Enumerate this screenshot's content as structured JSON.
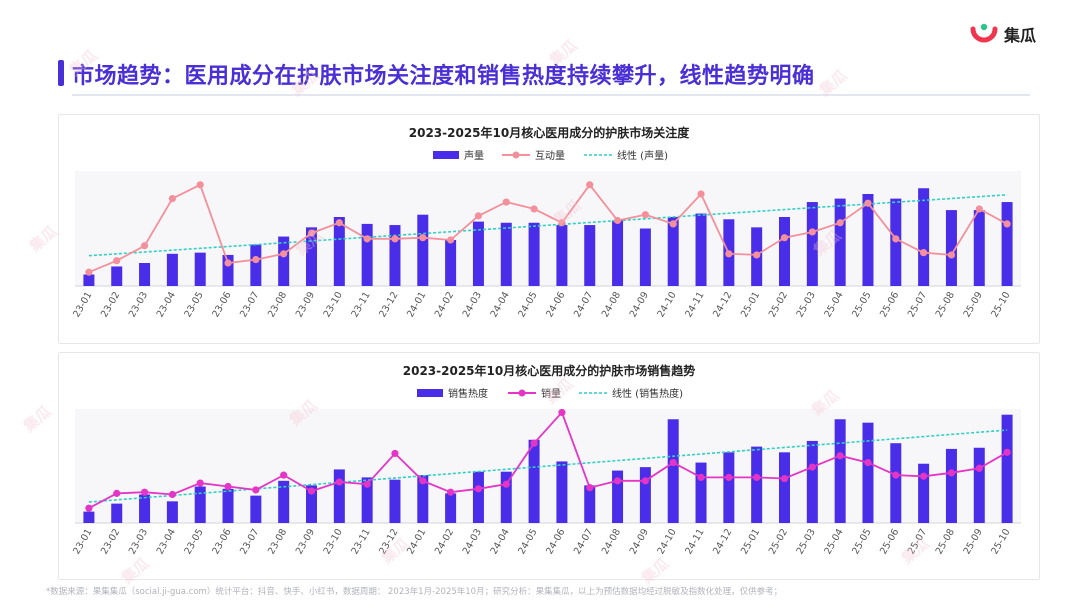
{
  "brand": {
    "name": "集瓜"
  },
  "page_title": "市场趋势：医用成分在护肤市场关注度和销售热度持续攀升，线性趋势明确",
  "footnote": "*数据来源：果集集瓜（social.ji-gua.com）统计平台：抖音、快手、小红书，数据周期： 2023年1月-2025年10月；研究分析：果集集瓜，以上为预估数据均经过脱敏及指数化处理，仅供参考；",
  "watermark": "集瓜",
  "colors": {
    "bar": "#4a2de8",
    "line1": "#f4909b",
    "line2": "#e535c6",
    "trend": "#2fd1c4",
    "title": "#4a2fd6"
  },
  "chart_data": [
    {
      "type": "bar",
      "title": "2023-2025年10月核心医用成分的护肤市场关注度",
      "legend": [
        "声量",
        "互动量",
        "线性 (声量)"
      ],
      "categories": [
        "23-01",
        "23-02",
        "23-03",
        "23-04",
        "23-05",
        "23-06",
        "23-07",
        "23-08",
        "23-09",
        "23-10",
        "23-11",
        "23-12",
        "24-01",
        "24-02",
        "24-03",
        "24-04",
        "24-05",
        "24-06",
        "24-07",
        "24-08",
        "24-09",
        "24-10",
        "24-11",
        "24-12",
        "25-01",
        "25-02",
        "25-03",
        "25-04",
        "25-05",
        "25-06",
        "25-07",
        "25-08",
        "25-09",
        "25-10"
      ],
      "series": [
        {
          "name": "声量",
          "kind": "bar",
          "values": [
            10,
            17,
            20,
            28,
            29,
            27,
            36,
            43,
            51,
            60,
            54,
            53,
            62,
            40,
            56,
            55,
            55,
            53,
            53,
            57,
            50,
            60,
            63,
            58,
            51,
            60,
            73,
            76,
            80,
            76,
            85,
            66,
            66,
            73
          ]
        },
        {
          "name": "互动量",
          "kind": "line",
          "values": [
            12,
            22,
            35,
            76,
            88,
            20,
            23,
            28,
            46,
            55,
            41,
            41,
            42,
            40,
            61,
            73,
            67,
            55,
            88,
            57,
            62,
            54,
            80,
            28,
            27,
            42,
            47,
            55,
            72,
            41,
            29,
            27,
            67,
            54
          ]
        }
      ],
      "trend_label": "线性 (声量)",
      "ylim": [
        0,
        100
      ]
    },
    {
      "type": "bar",
      "title": "2023-2025年10月核心医用成分的护肤市场销售趋势",
      "legend": [
        "销售热度",
        "销量",
        "线性 (销售热度)"
      ],
      "categories": [
        "23-01",
        "23-02",
        "23-03",
        "23-04",
        "23-05",
        "23-06",
        "23-07",
        "23-08",
        "23-09",
        "23-10",
        "23-11",
        "23-12",
        "24-01",
        "24-02",
        "24-03",
        "24-04",
        "24-05",
        "24-06",
        "24-07",
        "24-08",
        "24-09",
        "24-10",
        "24-11",
        "24-12",
        "25-01",
        "25-02",
        "25-03",
        "25-04",
        "25-05",
        "25-06",
        "25-07",
        "25-08",
        "25-09",
        "25-10"
      ],
      "series": [
        {
          "name": "销售热度",
          "kind": "bar",
          "values": [
            10,
            17,
            25,
            19,
            32,
            30,
            24,
            37,
            33,
            47,
            40,
            38,
            42,
            26,
            45,
            45,
            73,
            54,
            33,
            46,
            49,
            91,
            53,
            62,
            67,
            62,
            72,
            91,
            88,
            70,
            52,
            65,
            66,
            95
          ]
        },
        {
          "name": "销量",
          "kind": "line",
          "values": [
            13,
            26,
            27,
            25,
            35,
            32,
            29,
            42,
            28,
            36,
            34,
            61,
            37,
            27,
            30,
            34,
            70,
            97,
            31,
            37,
            37,
            53,
            40,
            40,
            40,
            39,
            49,
            59,
            53,
            42,
            41,
            44,
            48,
            62
          ]
        }
      ],
      "trend_label": "线性 (销售热度)",
      "ylim": [
        0,
        100
      ]
    }
  ]
}
